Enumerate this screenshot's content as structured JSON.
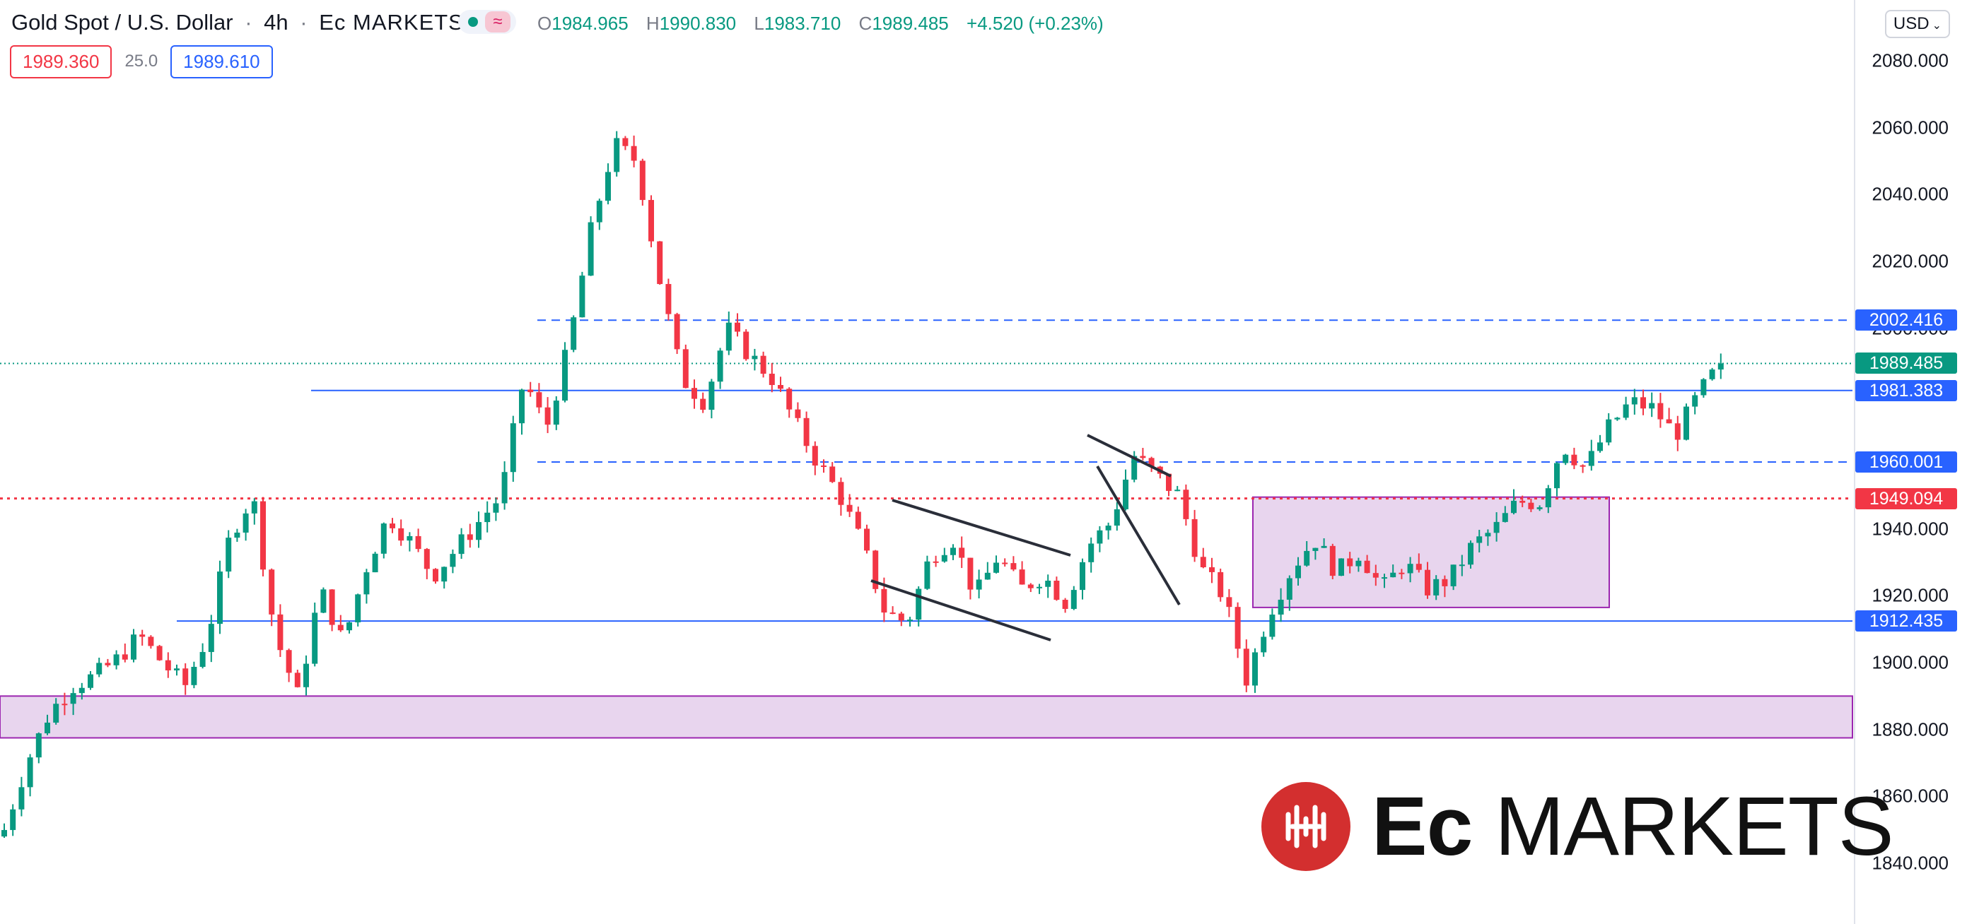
{
  "header": {
    "symbol": "Gold Spot / U.S. Dollar",
    "separator": "·",
    "interval": "4h",
    "broker": "Ec MARKETS",
    "status_icons": [
      "market-open-dot-icon",
      "wave-icon"
    ],
    "ohlc": {
      "o_label": "O",
      "o": "1984.965",
      "h_label": "H",
      "h": "1990.830",
      "l_label": "L",
      "l": "1983.710",
      "c_label": "C",
      "c": "1989.485",
      "change": "+4.520 (+0.23%)"
    },
    "bid": "1989.360",
    "spread": "25.0",
    "ask": "1989.610"
  },
  "price_axis": {
    "currency": "USD",
    "ticks": [
      "2080.000",
      "2060.000",
      "2040.000",
      "2020.000",
      "2000.000",
      "1940.000",
      "1920.000",
      "1900.000",
      "1880.000",
      "1860.000",
      "1840.000"
    ],
    "labels": [
      {
        "value": "2002.416",
        "color": "#2962ff"
      },
      {
        "value": "1989.485",
        "color": "#089981"
      },
      {
        "value": "1981.383",
        "color": "#2962ff"
      },
      {
        "value": "1960.001",
        "color": "#2962ff"
      },
      {
        "value": "1949.094",
        "color": "#f23645"
      },
      {
        "value": "1912.435",
        "color": "#2962ff"
      }
    ]
  },
  "colors": {
    "up": "#089981",
    "down": "#f23645",
    "line": "#2962ff",
    "zone_fill": "#e8d5ee",
    "zone_border": "#9c27b0"
  },
  "chart_data": {
    "type": "candlestick",
    "interval": "4h",
    "y_range": [
      1833,
      2092
    ],
    "last_price": 1989.485,
    "horizontal_levels": [
      {
        "price": 2002.416,
        "style": "dashed"
      },
      {
        "price": 1981.383,
        "style": "solid"
      },
      {
        "price": 1960.001,
        "style": "dashed"
      },
      {
        "price": 1949.094,
        "style": "dotted",
        "color": "red"
      },
      {
        "price": 1912.435,
        "style": "solid"
      }
    ],
    "zones": [
      {
        "from": 1877.5,
        "to": 1890.0
      },
      {
        "from": 1916.5,
        "to": 1949.5
      }
    ],
    "close_path": [
      1850,
      1870,
      1885,
      1893,
      1896,
      1901,
      1908,
      1900,
      1893,
      1908,
      1938,
      1950,
      1908,
      1890,
      1922,
      1906,
      1928,
      1944,
      1936,
      1926,
      1934,
      1942,
      1950,
      1985,
      1970,
      1995,
      2030,
      2055,
      2050,
      2015,
      1985,
      1978,
      2000,
      1992,
      1985,
      1972,
      1960,
      1950,
      1935,
      1915,
      1912,
      1932,
      1937,
      1920,
      1932,
      1922,
      1926,
      1918,
      1935,
      1942,
      1962,
      1956,
      1950,
      1928,
      1920,
      1895,
      1915,
      1928,
      1937,
      1927,
      1933,
      1922,
      1930,
      1922,
      1925,
      1935,
      1940,
      1948,
      1948,
      1965,
      1958,
      1970,
      1978,
      1976,
      1968,
      1980,
      1989.485
    ]
  },
  "logo": {
    "mark_icon": "ec-markets-logo-icon",
    "text_bold": "Ec",
    "text_regular": "MARKETS"
  }
}
